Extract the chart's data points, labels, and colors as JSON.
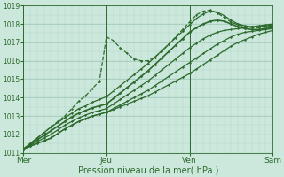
{
  "xlabel": "Pression niveau de la mer( hPa )",
  "bg_color": "#cce8dc",
  "line_color": "#2d6a2d",
  "ylim": [
    1011,
    1019
  ],
  "yticks": [
    1011,
    1012,
    1013,
    1014,
    1015,
    1016,
    1017,
    1018,
    1019
  ],
  "day_labels": [
    "Mer",
    "Jeu",
    "Ven",
    "Sam"
  ],
  "day_positions": [
    0,
    96,
    192,
    288
  ],
  "xlim": [
    0,
    288
  ],
  "lines": [
    {
      "lw": 0.9,
      "marker": "D",
      "ms": 1.2,
      "style": "-",
      "points": [
        [
          0,
          1011.2
        ],
        [
          8,
          1011.35
        ],
        [
          16,
          1011.5
        ],
        [
          24,
          1011.65
        ],
        [
          32,
          1011.8
        ],
        [
          40,
          1012.05
        ],
        [
          48,
          1012.3
        ],
        [
          56,
          1012.5
        ],
        [
          64,
          1012.7
        ],
        [
          72,
          1012.85
        ],
        [
          80,
          1013.0
        ],
        [
          88,
          1013.1
        ],
        [
          96,
          1013.2
        ],
        [
          104,
          1013.35
        ],
        [
          112,
          1013.5
        ],
        [
          120,
          1013.65
        ],
        [
          128,
          1013.8
        ],
        [
          136,
          1013.95
        ],
        [
          144,
          1014.1
        ],
        [
          152,
          1014.3
        ],
        [
          160,
          1014.5
        ],
        [
          168,
          1014.7
        ],
        [
          176,
          1014.9
        ],
        [
          184,
          1015.1
        ],
        [
          192,
          1015.3
        ],
        [
          200,
          1015.55
        ],
        [
          208,
          1015.8
        ],
        [
          216,
          1016.05
        ],
        [
          224,
          1016.3
        ],
        [
          232,
          1016.55
        ],
        [
          240,
          1016.8
        ],
        [
          248,
          1017.0
        ],
        [
          256,
          1017.15
        ],
        [
          264,
          1017.3
        ],
        [
          272,
          1017.45
        ],
        [
          280,
          1017.55
        ],
        [
          288,
          1017.65
        ]
      ]
    },
    {
      "lw": 0.9,
      "marker": "D",
      "ms": 1.2,
      "style": "-",
      "points": [
        [
          0,
          1011.2
        ],
        [
          8,
          1011.35
        ],
        [
          16,
          1011.5
        ],
        [
          24,
          1011.65
        ],
        [
          32,
          1011.8
        ],
        [
          40,
          1012.05
        ],
        [
          48,
          1012.3
        ],
        [
          56,
          1012.5
        ],
        [
          64,
          1012.7
        ],
        [
          72,
          1012.85
        ],
        [
          80,
          1013.0
        ],
        [
          88,
          1013.1
        ],
        [
          96,
          1013.2
        ],
        [
          104,
          1013.4
        ],
        [
          112,
          1013.6
        ],
        [
          120,
          1013.8
        ],
        [
          128,
          1014.0
        ],
        [
          136,
          1014.2
        ],
        [
          144,
          1014.4
        ],
        [
          152,
          1014.65
        ],
        [
          160,
          1014.9
        ],
        [
          168,
          1015.15
        ],
        [
          176,
          1015.4
        ],
        [
          184,
          1015.65
        ],
        [
          192,
          1015.9
        ],
        [
          200,
          1016.15
        ],
        [
          208,
          1016.4
        ],
        [
          216,
          1016.65
        ],
        [
          224,
          1016.9
        ],
        [
          232,
          1017.1
        ],
        [
          240,
          1017.3
        ],
        [
          248,
          1017.45
        ],
        [
          256,
          1017.55
        ],
        [
          264,
          1017.6
        ],
        [
          272,
          1017.65
        ],
        [
          280,
          1017.7
        ],
        [
          288,
          1017.75
        ]
      ]
    },
    {
      "lw": 0.9,
      "marker": "D",
      "ms": 1.2,
      "style": "-",
      "points": [
        [
          0,
          1011.2
        ],
        [
          8,
          1011.4
        ],
        [
          16,
          1011.6
        ],
        [
          24,
          1011.8
        ],
        [
          32,
          1012.0
        ],
        [
          40,
          1012.25
        ],
        [
          48,
          1012.5
        ],
        [
          56,
          1012.7
        ],
        [
          64,
          1012.9
        ],
        [
          72,
          1013.05
        ],
        [
          80,
          1013.2
        ],
        [
          88,
          1013.3
        ],
        [
          96,
          1013.4
        ],
        [
          104,
          1013.65
        ],
        [
          112,
          1013.9
        ],
        [
          120,
          1014.15
        ],
        [
          128,
          1014.4
        ],
        [
          136,
          1014.65
        ],
        [
          144,
          1014.9
        ],
        [
          152,
          1015.2
        ],
        [
          160,
          1015.5
        ],
        [
          168,
          1015.8
        ],
        [
          176,
          1016.1
        ],
        [
          184,
          1016.4
        ],
        [
          192,
          1016.7
        ],
        [
          200,
          1016.95
        ],
        [
          208,
          1017.2
        ],
        [
          216,
          1017.4
        ],
        [
          224,
          1017.55
        ],
        [
          232,
          1017.65
        ],
        [
          240,
          1017.7
        ],
        [
          248,
          1017.75
        ],
        [
          256,
          1017.8
        ],
        [
          264,
          1017.85
        ],
        [
          272,
          1017.9
        ],
        [
          280,
          1017.95
        ],
        [
          288,
          1018.0
        ]
      ]
    },
    {
      "lw": 1.2,
      "marker": "D",
      "ms": 1.5,
      "style": "-",
      "points": [
        [
          0,
          1011.2
        ],
        [
          8,
          1011.45
        ],
        [
          16,
          1011.7
        ],
        [
          24,
          1011.95
        ],
        [
          32,
          1012.2
        ],
        [
          40,
          1012.45
        ],
        [
          48,
          1012.7
        ],
        [
          56,
          1012.95
        ],
        [
          64,
          1013.15
        ],
        [
          72,
          1013.3
        ],
        [
          80,
          1013.45
        ],
        [
          88,
          1013.55
        ],
        [
          96,
          1013.65
        ],
        [
          104,
          1013.95
        ],
        [
          112,
          1014.25
        ],
        [
          120,
          1014.55
        ],
        [
          128,
          1014.85
        ],
        [
          136,
          1015.15
        ],
        [
          144,
          1015.45
        ],
        [
          152,
          1015.8
        ],
        [
          160,
          1016.15
        ],
        [
          168,
          1016.5
        ],
        [
          176,
          1016.85
        ],
        [
          184,
          1017.2
        ],
        [
          192,
          1017.55
        ],
        [
          200,
          1017.8
        ],
        [
          208,
          1018.0
        ],
        [
          216,
          1018.15
        ],
        [
          224,
          1018.2
        ],
        [
          232,
          1018.15
        ],
        [
          240,
          1018.0
        ],
        [
          248,
          1017.85
        ],
        [
          256,
          1017.75
        ],
        [
          264,
          1017.7
        ],
        [
          272,
          1017.7
        ],
        [
          280,
          1017.75
        ],
        [
          288,
          1017.8
        ]
      ]
    },
    {
      "lw": 0.9,
      "marker": "D",
      "ms": 1.2,
      "style": "--",
      "points": [
        [
          0,
          1011.2
        ],
        [
          8,
          1011.5
        ],
        [
          16,
          1011.8
        ],
        [
          24,
          1012.1
        ],
        [
          32,
          1012.4
        ],
        [
          40,
          1012.7
        ],
        [
          48,
          1013.0
        ],
        [
          56,
          1013.4
        ],
        [
          64,
          1013.8
        ],
        [
          72,
          1014.1
        ],
        [
          80,
          1014.5
        ],
        [
          88,
          1014.9
        ],
        [
          96,
          1017.3
        ],
        [
          104,
          1017.1
        ],
        [
          112,
          1016.7
        ],
        [
          120,
          1016.4
        ],
        [
          128,
          1016.1
        ],
        [
          136,
          1016.0
        ],
        [
          144,
          1016.0
        ],
        [
          152,
          1016.2
        ],
        [
          160,
          1016.5
        ],
        [
          168,
          1016.9
        ],
        [
          176,
          1017.3
        ],
        [
          184,
          1017.7
        ],
        [
          192,
          1018.1
        ],
        [
          200,
          1018.5
        ],
        [
          208,
          1018.7
        ],
        [
          216,
          1018.75
        ],
        [
          224,
          1018.6
        ],
        [
          232,
          1018.35
        ],
        [
          240,
          1018.1
        ],
        [
          248,
          1017.95
        ],
        [
          256,
          1017.85
        ],
        [
          264,
          1017.8
        ],
        [
          272,
          1017.8
        ],
        [
          280,
          1017.85
        ],
        [
          288,
          1017.9
        ]
      ]
    },
    {
      "lw": 0.9,
      "marker": "D",
      "ms": 1.2,
      "style": "-",
      "points": [
        [
          0,
          1011.2
        ],
        [
          8,
          1011.5
        ],
        [
          16,
          1011.8
        ],
        [
          24,
          1012.1
        ],
        [
          32,
          1012.4
        ],
        [
          40,
          1012.65
        ],
        [
          48,
          1012.9
        ],
        [
          56,
          1013.15
        ],
        [
          64,
          1013.4
        ],
        [
          72,
          1013.55
        ],
        [
          80,
          1013.75
        ],
        [
          88,
          1013.9
        ],
        [
          96,
          1014.05
        ],
        [
          104,
          1014.35
        ],
        [
          112,
          1014.65
        ],
        [
          120,
          1014.95
        ],
        [
          128,
          1015.25
        ],
        [
          136,
          1015.55
        ],
        [
          144,
          1015.85
        ],
        [
          152,
          1016.2
        ],
        [
          160,
          1016.55
        ],
        [
          168,
          1016.9
        ],
        [
          176,
          1017.25
        ],
        [
          184,
          1017.6
        ],
        [
          192,
          1017.95
        ],
        [
          200,
          1018.3
        ],
        [
          208,
          1018.55
        ],
        [
          216,
          1018.7
        ],
        [
          224,
          1018.65
        ],
        [
          232,
          1018.45
        ],
        [
          240,
          1018.2
        ],
        [
          248,
          1018.0
        ],
        [
          256,
          1017.9
        ],
        [
          264,
          1017.85
        ],
        [
          272,
          1017.85
        ],
        [
          280,
          1017.9
        ],
        [
          288,
          1017.95
        ]
      ]
    }
  ]
}
